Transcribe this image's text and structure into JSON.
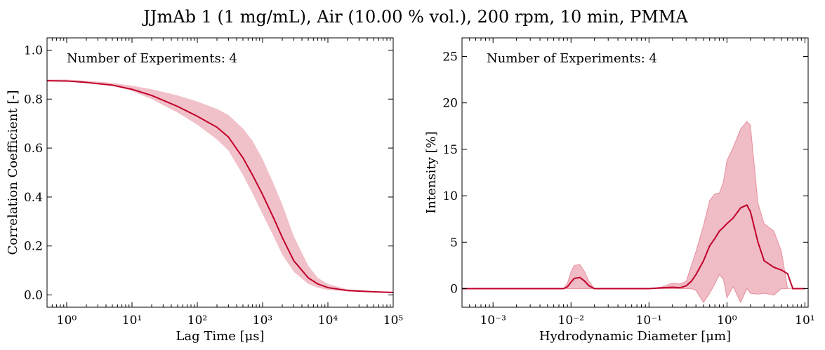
{
  "figure": {
    "title": "JJmAb 1 (1 mg/mL), Air (10.00 % vol.), 200 rpm, 10 min, PMMA"
  },
  "chart_data": [
    {
      "type": "area",
      "title": "",
      "xlabel": "Lag Time [μs]",
      "ylabel": "Correlation Coefficient [-]",
      "xscale": "log",
      "xlim": [
        0.5,
        100000
      ],
      "ylim": [
        -0.05,
        1.05
      ],
      "xticks": [
        1,
        10,
        100,
        1000,
        10000,
        100000
      ],
      "xtick_labels": [
        "10⁰",
        "10¹",
        "10²",
        "10³",
        "10⁴",
        "10⁵"
      ],
      "yticks": [
        0.0,
        0.2,
        0.4,
        0.6,
        0.8,
        1.0
      ],
      "ytick_labels": [
        "0.0",
        "0.2",
        "0.4",
        "0.6",
        "0.8",
        "1.0"
      ],
      "grid": false,
      "annotation": "Number of Experiments: 4",
      "line_color": "#c0002a",
      "band_color": "#c8102e",
      "series": [
        {
          "x": [
            0.5,
            1,
            2,
            5,
            10,
            20,
            50,
            100,
            200,
            300,
            500,
            700,
            1000,
            1500,
            2000,
            3000,
            5000,
            7000,
            10000,
            20000,
            50000,
            100000
          ],
          "mean": [
            0.875,
            0.874,
            0.868,
            0.857,
            0.84,
            0.815,
            0.77,
            0.73,
            0.685,
            0.645,
            0.56,
            0.49,
            0.41,
            0.31,
            0.235,
            0.14,
            0.07,
            0.045,
            0.03,
            0.018,
            0.013,
            0.01
          ],
          "lower": [
            0.875,
            0.874,
            0.868,
            0.855,
            0.833,
            0.8,
            0.745,
            0.695,
            0.635,
            0.59,
            0.49,
            0.415,
            0.33,
            0.235,
            0.165,
            0.095,
            0.045,
            0.03,
            0.02,
            0.015,
            0.011,
            0.008
          ],
          "upper": [
            0.88,
            0.88,
            0.875,
            0.866,
            0.855,
            0.84,
            0.815,
            0.79,
            0.76,
            0.735,
            0.68,
            0.63,
            0.555,
            0.45,
            0.37,
            0.24,
            0.12,
            0.07,
            0.045,
            0.023,
            0.016,
            0.013
          ]
        }
      ]
    },
    {
      "type": "area",
      "title": "",
      "xlabel": "Hydrodynamic Diameter [μm]",
      "ylabel": "Intensity [%]",
      "xscale": "log",
      "xlim": [
        0.0004,
        11
      ],
      "ylim": [
        -2,
        27
      ],
      "xticks": [
        0.001,
        0.01,
        0.1,
        1,
        10
      ],
      "xtick_labels": [
        "10⁻³",
        "10⁻²",
        "10⁻¹",
        "10⁰",
        "10¹"
      ],
      "yticks": [
        0,
        5,
        10,
        15,
        20,
        25
      ],
      "ytick_labels": [
        "0",
        "5",
        "10",
        "15",
        "20",
        "25"
      ],
      "grid": false,
      "annotation": "Number of Experiments: 4",
      "line_color": "#c0002a",
      "band_color": "#c8102e",
      "series": [
        {
          "x": [
            0.0004,
            0.007,
            0.008,
            0.009,
            0.01,
            0.011,
            0.013,
            0.015,
            0.017,
            0.02,
            0.03,
            0.1,
            0.15,
            0.2,
            0.25,
            0.3,
            0.35,
            0.4,
            0.5,
            0.6,
            0.7,
            0.8,
            0.9,
            1.0,
            1.2,
            1.5,
            1.8,
            2.0,
            2.5,
            3.0,
            4.0,
            5.0,
            6.0,
            7.0,
            8.0,
            10.0
          ],
          "mean": [
            0,
            0,
            0,
            0.2,
            0.7,
            1.1,
            1.2,
            0.8,
            0.3,
            0,
            0,
            0,
            0.1,
            0.15,
            0.1,
            0.3,
            0.8,
            1.5,
            3.0,
            4.6,
            5.4,
            6.2,
            6.6,
            7.0,
            7.6,
            8.7,
            9.0,
            8.3,
            5.0,
            3.0,
            2.3,
            2.0,
            1.6,
            0.0,
            0.0,
            0.0
          ],
          "lower": [
            0,
            0,
            0,
            0.0,
            0.0,
            0.0,
            0.0,
            0.0,
            0.0,
            0,
            0,
            0,
            0.0,
            0.0,
            0.0,
            0.0,
            0.0,
            -0.2,
            -1.5,
            -0.5,
            0.5,
            1.5,
            1.0,
            -1.0,
            0.2,
            -1.5,
            0.0,
            -0.5,
            -0.6,
            -0.5,
            -0.7,
            0.0,
            0.0,
            0.0,
            0.0,
            0.0
          ],
          "upper": [
            0,
            0,
            0,
            0.6,
            1.8,
            2.5,
            2.6,
            1.8,
            0.8,
            0,
            0,
            0,
            0.2,
            0.6,
            0.5,
            0.8,
            2.5,
            4.0,
            6.8,
            9.5,
            10.2,
            10.3,
            11.5,
            13.8,
            15.2,
            17.2,
            18.0,
            17.6,
            9.2,
            7.0,
            6.2,
            4.0,
            0.0,
            0.0,
            0.0,
            0.0
          ]
        }
      ]
    }
  ]
}
